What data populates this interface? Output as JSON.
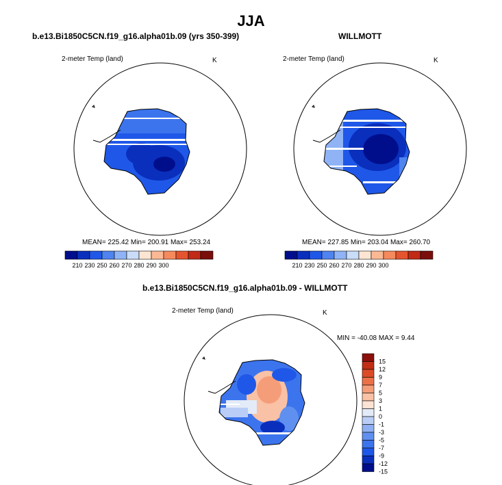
{
  "main_title": "JJA",
  "palette_abs": [
    "#000e8c",
    "#0a2fbd",
    "#1f58e8",
    "#4f83f0",
    "#8fb3f5",
    "#c9dcf8",
    "#fde5d2",
    "#fbb894",
    "#f58a5e",
    "#e4542e",
    "#c02a17",
    "#7a0e0b"
  ],
  "palette_diff": [
    "#000e8c",
    "#0a2fbd",
    "#1f58e8",
    "#3c74ee",
    "#5f90f0",
    "#8eb0f3",
    "#b9cdf6",
    "#e3ebf8",
    "#fde3d3",
    "#f9c1a5",
    "#f59d79",
    "#ec7148",
    "#dc4b27",
    "#c12d15",
    "#8b0f0b"
  ],
  "chart_data": [
    {
      "type": "heatmap",
      "title": "b.e13.Bi1850C5CN.f19_g16.alpha01b.09 (yrs 350-399)",
      "variable": "2-meter Temp (land)",
      "units": "K",
      "stats": {
        "mean": 225.42,
        "min": 200.91,
        "max": 253.24
      },
      "stats_text": "MEAN= 225.42  Min= 200.91  Max= 253.24",
      "colorbar_ticks": [
        "210",
        "230",
        "250",
        "260",
        "270",
        "280",
        "290",
        "300"
      ]
    },
    {
      "type": "heatmap",
      "title": "WILLMOTT",
      "variable": "2-meter Temp (land)",
      "units": "K",
      "stats": {
        "mean": 227.85,
        "min": 203.04,
        "max": 260.7
      },
      "stats_text": "MEAN= 227.85  Min= 203.04  Max= 260.70",
      "colorbar_ticks": [
        "210",
        "230",
        "250",
        "260",
        "270",
        "280",
        "290",
        "300"
      ]
    },
    {
      "type": "heatmap",
      "title": "b.e13.Bi1850C5CN.f19_g16.alpha01b.09 - WILLMOTT",
      "variable": "2-meter Temp (land)",
      "units": "K",
      "stats": {
        "min": -40.08,
        "max": 9.44
      },
      "stats_text": "MIN = -40.08 MAX =   9.44",
      "colorbar_ticks": [
        "15",
        "12",
        "9",
        "7",
        "5",
        "3",
        "1",
        "0",
        "-1",
        "-3",
        "-5",
        "-7",
        "-9",
        "-12",
        "-15"
      ]
    }
  ]
}
